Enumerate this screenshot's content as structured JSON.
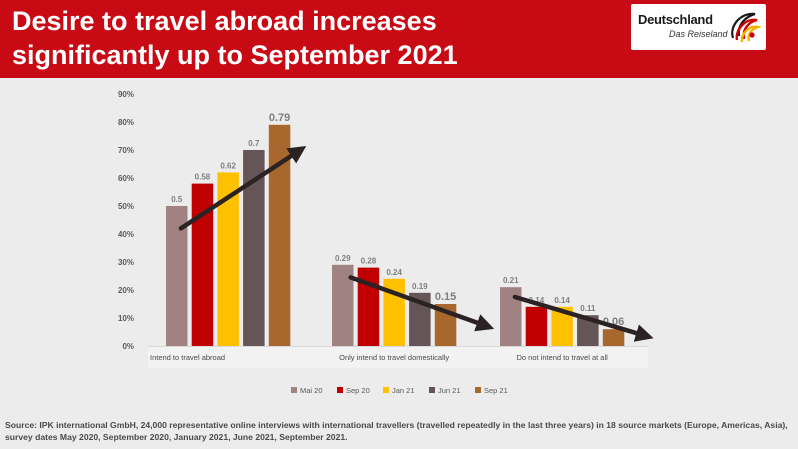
{
  "header": {
    "title_line1": "Desire to travel abroad increases",
    "title_line2": "significantly up to September 2021",
    "background_color": "#c80a14"
  },
  "logo": {
    "name": "Deutschland",
    "tagline": "Das Reiseland"
  },
  "chart_data": {
    "type": "bar",
    "categories": [
      "Intend to travel abroad",
      "Only intend to travel domestically",
      "Do not intend to travel at all"
    ],
    "series": [
      {
        "name": "Mai 20",
        "color": "#a08283",
        "values": [
          0.5,
          0.29,
          0.21
        ]
      },
      {
        "name": "Sep 20",
        "color": "#c00000",
        "values": [
          0.58,
          0.28,
          0.14
        ]
      },
      {
        "name": "Jan 21",
        "color": "#ffc000",
        "values": [
          0.62,
          0.24,
          0.14
        ]
      },
      {
        "name": "Jun 21",
        "color": "#655556",
        "values": [
          0.7,
          0.19,
          0.11
        ]
      },
      {
        "name": "Sep 21",
        "color": "#a8672d",
        "values": [
          0.79,
          0.15,
          0.06
        ]
      }
    ],
    "data_labels": [
      [
        "0.5",
        "0.58",
        "0.62",
        "0.7",
        "0.79"
      ],
      [
        "0.29",
        "0.28",
        "0.24",
        "0.19",
        "0.15"
      ],
      [
        "0.21",
        "0.14",
        "0.14",
        "0.11",
        "0.06"
      ]
    ],
    "y_ticks": [
      "0%",
      "10%",
      "20%",
      "30%",
      "40%",
      "50%",
      "60%",
      "70%",
      "80%",
      "90%"
    ],
    "ylim": [
      0,
      0.9
    ],
    "legend_position": "bottom",
    "grid": false,
    "trend_arrows": "up for Intend to travel abroad; down for the other two categories",
    "arrow_color": "#2b2323"
  },
  "source": "Source: IPK international GmbH, 24,000 representative online interviews with international travellers (travelled repeatedly in the last three years) in 18 source markets (Europe, Americas, Asia), survey dates May 2020, September 2020, January 2021, June 2021, September 2021."
}
